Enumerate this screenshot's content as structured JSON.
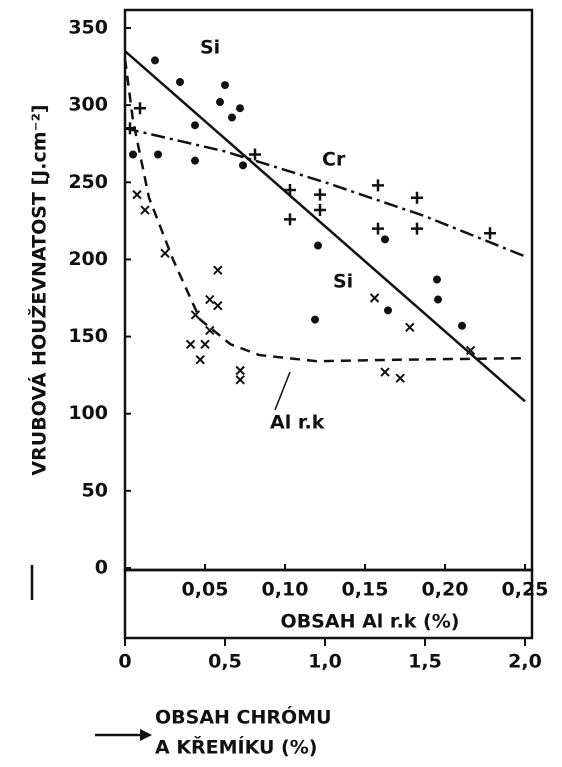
{
  "chart_data": {
    "type": "line",
    "ylabel": "VRUBOVÁ HOUŽEVNATOST  [J.cm⁻²]",
    "xlabel": [
      "OBSAH CHRÓMU",
      "A KŘEMÍKU  (%)"
    ],
    "x2label": "OBSAH Al r.k (%)",
    "ylim": [
      0,
      350
    ],
    "yticks": [
      0,
      50,
      100,
      150,
      200,
      250,
      300,
      350
    ],
    "xlim": [
      0,
      2.0
    ],
    "xticks": [
      0,
      {
        "value": 0.5,
        "label": "0,5"
      },
      {
        "value": 1.0,
        "label": "1,0"
      },
      {
        "value": 1.5,
        "label": "1,5"
      },
      {
        "value": 2.0,
        "label": "2,0"
      }
    ],
    "x2lim": [
      0,
      0.25
    ],
    "x2ticks": [
      {
        "value": 0.05,
        "label": "0,05"
      },
      {
        "value": 0.1,
        "label": "0,10"
      },
      {
        "value": 0.15,
        "label": "0,15"
      },
      {
        "value": 0.2,
        "label": "0,20"
      },
      {
        "value": 0.25,
        "label": "0,25"
      }
    ],
    "series": [
      {
        "name": "Si",
        "color": "#111",
        "style": "solid",
        "marker": "dot",
        "x": [
          0,
          2.0
        ],
        "values": [
          335,
          108
        ],
        "points_x": [
          0.15,
          0.275,
          0.35,
          0.475,
          0.5,
          0.535,
          0.575,
          0.59,
          0.04,
          0.165,
          0.35,
          0.965,
          0.95,
          1.3,
          1.315,
          1.56,
          1.565,
          1.685
        ],
        "points_y": [
          329,
          315,
          287,
          302,
          313,
          292,
          298,
          261,
          268,
          268,
          264,
          209,
          161,
          213,
          167,
          187,
          174,
          157
        ]
      },
      {
        "name": "Cr",
        "color": "#111",
        "style": "dashdot",
        "marker": "plus",
        "x": [
          0,
          0.5,
          1.0,
          1.5,
          2.0
        ],
        "values": [
          285,
          270,
          250,
          228,
          202
        ],
        "points_x": [
          0.025,
          0.075,
          0.65,
          0.825,
          0.825,
          0.975,
          0.975,
          1.265,
          1.265,
          1.46,
          1.46,
          1.825
        ],
        "points_y": [
          285,
          298,
          268,
          245,
          226,
          242,
          232,
          248,
          220,
          240,
          220,
          217
        ]
      },
      {
        "name": "Al r.k",
        "color": "#111",
        "style": "dashed",
        "marker": "cross",
        "axis": "x2",
        "x": [
          0,
          0.005,
          0.015,
          0.03,
          0.047,
          0.066,
          0.084,
          0.12,
          0.17,
          0.25
        ],
        "values": [
          330,
          290,
          240,
          200,
          161,
          145,
          138,
          134,
          135,
          136
        ],
        "points_x": [
          0.0075,
          0.0125,
          0.025,
          0.041,
          0.05,
          0.047,
          0.044,
          0.053,
          0.058,
          0.058,
          0.053,
          0.072,
          0.072,
          0.156,
          0.178,
          0.1625,
          0.172,
          0.216
        ],
        "points_y": [
          242,
          232,
          204,
          145,
          145,
          135,
          164,
          174,
          170,
          193,
          154,
          128,
          122,
          175,
          156,
          127,
          123,
          141
        ]
      }
    ]
  }
}
